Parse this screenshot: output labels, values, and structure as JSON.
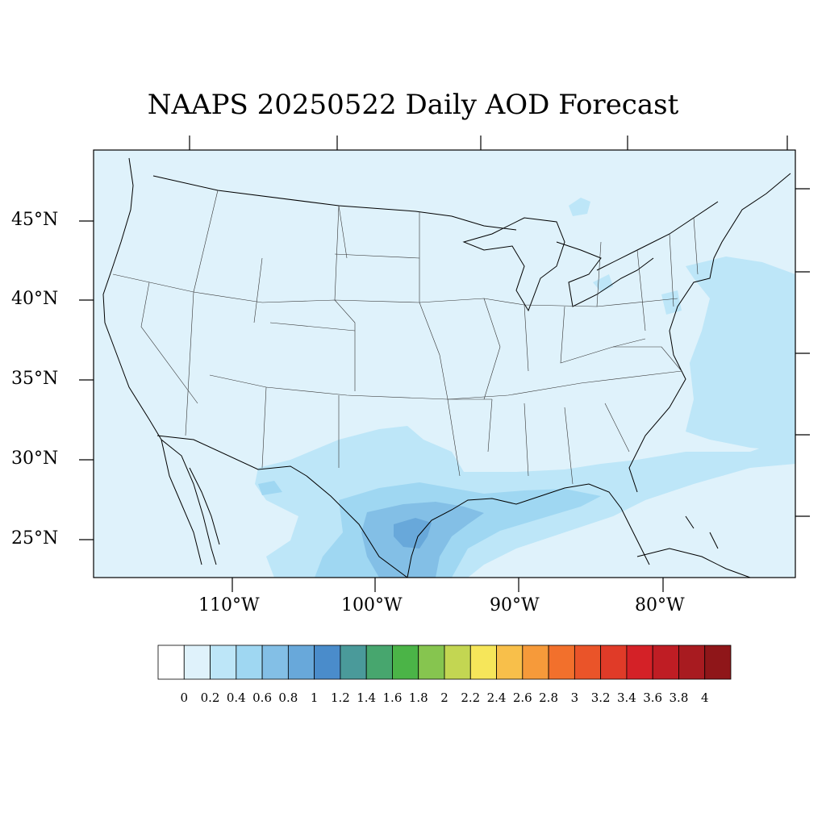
{
  "title": "NAAPS 20250522 Daily AOD Forecast",
  "map": {
    "region": "Contiguous United States",
    "background_color": "#dff2fb",
    "lat_labels": [
      "45°N",
      "40°N",
      "35°N",
      "30°N",
      "25°N"
    ],
    "lon_labels": [
      "110°W",
      "100°W",
      "90°W",
      "80°W"
    ]
  },
  "colorbar": {
    "labels": [
      "0",
      "0.2",
      "0.4",
      "0.6",
      "0.8",
      "1",
      "1.2",
      "1.4",
      "1.6",
      "1.8",
      "2",
      "2.2",
      "2.4",
      "2.6",
      "2.8",
      "3",
      "3.2",
      "3.4",
      "3.6",
      "3.8",
      "4"
    ],
    "colors": [
      "#ffffff",
      "#dff2fb",
      "#bde6f8",
      "#9fd7f2",
      "#83bfe6",
      "#68a8da",
      "#4a8ccb",
      "#4a9a9a",
      "#47a66e",
      "#4bb447",
      "#86c54f",
      "#c3d652",
      "#f6e65a",
      "#f8bf4a",
      "#f69a3a",
      "#f2702c",
      "#ea5429",
      "#e03b28",
      "#d42127",
      "#bf1d24",
      "#a81b20",
      "#8f1619"
    ]
  },
  "aod_regions": [
    {
      "name": "gulf-texas-plume",
      "level": "0.2-0.4"
    },
    {
      "name": "gulf-core",
      "level": "0.4-0.6"
    },
    {
      "name": "south-texas-core",
      "level": "0.6-0.8"
    },
    {
      "name": "texas-coast-max",
      "level": "0.8-1.0"
    },
    {
      "name": "atlantic-plume",
      "level": "0.2-0.4"
    }
  ]
}
